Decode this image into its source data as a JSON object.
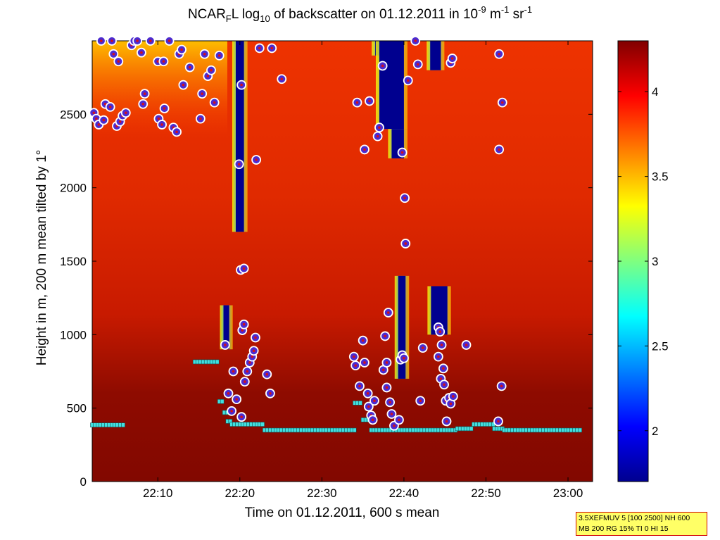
{
  "title": {
    "p1": "NCAR",
    "p1_sub": "F",
    "p2": "L log",
    "p2_sub": "10",
    "p3": " of backscatter on 01.12.2011 in 10",
    "sup1": "-9",
    "p4": " m",
    "sup2": "-1",
    "p5": " sr",
    "sup3": "-1"
  },
  "x_axis_label": "Time on 01.12.2011, 600 s mean",
  "y_axis_label": "Height in m, 200 m mean tilted by 1°",
  "info_box": {
    "line1": "3.5XEFMUV 5 [100 2500] NH 600",
    "line2": "MB 200 RG 15% TI 0 HI 15"
  },
  "colors": {
    "background": "#cc1a00",
    "lower_layer": "#8b0a00",
    "high": "#800000",
    "low": "#00008f",
    "marker_fill": "#4b2bd0",
    "marker_ring": "#ffffff",
    "marker_dot": "#d01020",
    "cyan_marker": "#40e0e0"
  },
  "chart_data": {
    "type": "heatmap",
    "x_unit": "time",
    "xlim": [
      "22:02",
      "23:03"
    ],
    "ylim": [
      0,
      3000
    ],
    "x_ticks": [
      "22:10",
      "22:20",
      "22:30",
      "22:40",
      "22:50",
      "23:00"
    ],
    "y_ticks": [
      0,
      500,
      1000,
      1500,
      2000,
      2500
    ],
    "colorbar": {
      "range": [
        1.7,
        4.3
      ],
      "ticks": [
        2,
        2.5,
        3,
        3.5,
        4
      ],
      "colormap": "jet"
    },
    "low_backscatter_regions": [
      {
        "t_start": "22:19.5",
        "t_end": "22:20.5",
        "z_min": 1700,
        "z_max": 3000
      },
      {
        "t_start": "22:18.0",
        "t_end": "22:18.7",
        "z_min": 900,
        "z_max": 1200
      },
      {
        "t_start": "22:36.5",
        "t_end": "22:38.0",
        "z_min": 2900,
        "z_max": 3000
      },
      {
        "t_start": "22:37.0",
        "t_end": "22:40.0",
        "z_min": 2400,
        "z_max": 3000
      },
      {
        "t_start": "22:38.5",
        "t_end": "22:40.0",
        "z_min": 2200,
        "z_max": 2400
      },
      {
        "t_start": "22:39.3",
        "t_end": "22:40.2",
        "z_min": 700,
        "z_max": 1400
      },
      {
        "t_start": "22:43.2",
        "t_end": "22:44.5",
        "z_min": 2800,
        "z_max": 3000
      },
      {
        "t_start": "22:43.3",
        "t_end": "22:45.3",
        "z_min": 1000,
        "z_max": 1330
      }
    ],
    "cloud_base_points": [
      {
        "t": "22:02.2",
        "z": 2510
      },
      {
        "t": "22:02.5",
        "z": 2470
      },
      {
        "t": "22:02.8",
        "z": 2430
      },
      {
        "t": "22:03.1",
        "z": 3000
      },
      {
        "t": "22:03.4",
        "z": 2460
      },
      {
        "t": "22:03.6",
        "z": 2570
      },
      {
        "t": "22:04.2",
        "z": 2550
      },
      {
        "t": "22:04.4",
        "z": 3000
      },
      {
        "t": "22:04.6",
        "z": 2910
      },
      {
        "t": "22:05.0",
        "z": 2420
      },
      {
        "t": "22:05.2",
        "z": 2860
      },
      {
        "t": "22:05.4",
        "z": 2450
      },
      {
        "t": "22:05.7",
        "z": 2490
      },
      {
        "t": "22:06.1",
        "z": 2510
      },
      {
        "t": "22:06.8",
        "z": 2970
      },
      {
        "t": "22:07.1",
        "z": 3000
      },
      {
        "t": "22:07.5",
        "z": 3000
      },
      {
        "t": "22:08.0",
        "z": 2920
      },
      {
        "t": "22:08.2",
        "z": 2570
      },
      {
        "t": "22:08.4",
        "z": 2640
      },
      {
        "t": "22:09.1",
        "z": 3000
      },
      {
        "t": "22:10.0",
        "z": 2860
      },
      {
        "t": "22:10.1",
        "z": 2470
      },
      {
        "t": "22:10.5",
        "z": 2430
      },
      {
        "t": "22:10.7",
        "z": 2860
      },
      {
        "t": "22:10.8",
        "z": 2540
      },
      {
        "t": "22:11.4",
        "z": 3000
      },
      {
        "t": "22:11.9",
        "z": 2410
      },
      {
        "t": "22:12.3",
        "z": 2380
      },
      {
        "t": "22:12.6",
        "z": 2910
      },
      {
        "t": "22:12.9",
        "z": 2940
      },
      {
        "t": "22:13.1",
        "z": 2700
      },
      {
        "t": "22:13.9",
        "z": 2820
      },
      {
        "t": "22:15.2",
        "z": 2470
      },
      {
        "t": "22:15.4",
        "z": 2640
      },
      {
        "t": "22:15.7",
        "z": 2910
      },
      {
        "t": "22:16.1",
        "z": 2760
      },
      {
        "t": "22:16.5",
        "z": 2800
      },
      {
        "t": "22:16.9",
        "z": 2580
      },
      {
        "t": "22:17.5",
        "z": 2900
      },
      {
        "t": "22:19.9",
        "z": 2160
      },
      {
        "t": "22:20.2",
        "z": 2700
      },
      {
        "t": "22:22.0",
        "z": 2190
      },
      {
        "t": "22:22.4",
        "z": 2950
      },
      {
        "t": "22:23.9",
        "z": 2950
      },
      {
        "t": "22:25.1",
        "z": 2740
      },
      {
        "t": "22:34.3",
        "z": 2580
      },
      {
        "t": "22:35.2",
        "z": 2260
      },
      {
        "t": "22:35.8",
        "z": 2590
      },
      {
        "t": "22:36.8",
        "z": 2350
      },
      {
        "t": "22:37.0",
        "z": 2410
      },
      {
        "t": "22:37.4",
        "z": 2830
      },
      {
        "t": "22:39.8",
        "z": 2240
      },
      {
        "t": "22:40.1",
        "z": 1930
      },
      {
        "t": "22:40.2",
        "z": 1620
      },
      {
        "t": "22:40.5",
        "z": 2730
      },
      {
        "t": "22:41.4",
        "z": 3000
      },
      {
        "t": "22:41.7",
        "z": 2840
      },
      {
        "t": "22:45.7",
        "z": 2850
      },
      {
        "t": "22:45.9",
        "z": 2880
      },
      {
        "t": "22:51.6",
        "z": 2910
      },
      {
        "t": "22:51.6",
        "z": 2260
      },
      {
        "t": "22:52.0",
        "z": 2580
      },
      {
        "t": "22:20.1",
        "z": 1440
      },
      {
        "t": "22:20.5",
        "z": 1450
      },
      {
        "t": "22:18.2",
        "z": 930
      },
      {
        "t": "22:19.2",
        "z": 750
      },
      {
        "t": "22:18.6",
        "z": 600
      },
      {
        "t": "22:19.0",
        "z": 480
      },
      {
        "t": "22:19.6",
        "z": 560
      },
      {
        "t": "22:20.2",
        "z": 440
      },
      {
        "t": "22:20.3",
        "z": 1030
      },
      {
        "t": "22:20.5",
        "z": 1070
      },
      {
        "t": "22:20.6",
        "z": 680
      },
      {
        "t": "22:20.9",
        "z": 750
      },
      {
        "t": "22:21.2",
        "z": 810
      },
      {
        "t": "22:21.5",
        "z": 850
      },
      {
        "t": "22:21.7",
        "z": 890
      },
      {
        "t": "22:21.9",
        "z": 980
      },
      {
        "t": "22:23.3",
        "z": 730
      },
      {
        "t": "22:23.7",
        "z": 600
      },
      {
        "t": "22:33.9",
        "z": 850
      },
      {
        "t": "22:34.1",
        "z": 790
      },
      {
        "t": "22:34.6",
        "z": 650
      },
      {
        "t": "22:35.0",
        "z": 960
      },
      {
        "t": "22:35.2",
        "z": 810
      },
      {
        "t": "22:35.6",
        "z": 600
      },
      {
        "t": "22:35.7",
        "z": 510
      },
      {
        "t": "22:36.0",
        "z": 450
      },
      {
        "t": "22:36.2",
        "z": 420
      },
      {
        "t": "22:36.4",
        "z": 550
      },
      {
        "t": "22:37.5",
        "z": 760
      },
      {
        "t": "22:37.7",
        "z": 990
      },
      {
        "t": "22:37.9",
        "z": 810
      },
      {
        "t": "22:37.9",
        "z": 640
      },
      {
        "t": "22:38.1",
        "z": 1150
      },
      {
        "t": "22:38.3",
        "z": 540
      },
      {
        "t": "22:38.5",
        "z": 460
      },
      {
        "t": "22:38.8",
        "z": 380
      },
      {
        "t": "22:39.4",
        "z": 420
      },
      {
        "t": "22:39.6",
        "z": 830
      },
      {
        "t": "22:39.8",
        "z": 860
      },
      {
        "t": "22:40.0",
        "z": 840
      },
      {
        "t": "22:42.3",
        "z": 910
      },
      {
        "t": "22:42.0",
        "z": 550
      },
      {
        "t": "22:44.2",
        "z": 1050
      },
      {
        "t": "22:44.4",
        "z": 1020
      },
      {
        "t": "22:44.6",
        "z": 930
      },
      {
        "t": "22:44.2",
        "z": 850
      },
      {
        "t": "22:44.5",
        "z": 700
      },
      {
        "t": "22:44.8",
        "z": 770
      },
      {
        "t": "22:44.9",
        "z": 660
      },
      {
        "t": "22:45.1",
        "z": 550
      },
      {
        "t": "22:45.2",
        "z": 410
      },
      {
        "t": "22:45.5",
        "z": 570
      },
      {
        "t": "22:45.7",
        "z": 530
      },
      {
        "t": "22:46.0",
        "z": 580
      },
      {
        "t": "22:47.6",
        "z": 930
      },
      {
        "t": "22:51.5",
        "z": 410
      },
      {
        "t": "22:51.9",
        "z": 650
      }
    ],
    "boundary_layer_height": [
      {
        "t_start": "22:02.0",
        "t_end": "22:06.0",
        "z": 385
      },
      {
        "t_start": "22:14.5",
        "t_end": "22:17.3",
        "z": 815
      },
      {
        "t_start": "22:17.5",
        "t_end": "22:18.1",
        "z": 545
      },
      {
        "t_start": "22:18.1",
        "t_end": "22:18.5",
        "z": 470
      },
      {
        "t_start": "22:18.5",
        "t_end": "22:19.0",
        "z": 410
      },
      {
        "t_start": "22:19.0",
        "t_end": "22:23.0",
        "z": 390
      },
      {
        "t_start": "22:23.0",
        "t_end": "22:34.0",
        "z": 350
      },
      {
        "t_start": "22:34.0",
        "t_end": "22:35.0",
        "z": 535
      },
      {
        "t_start": "22:35.0",
        "t_end": "22:36.0",
        "z": 420
      },
      {
        "t_start": "22:36.0",
        "t_end": "22:46.5",
        "z": 350
      },
      {
        "t_start": "22:46.5",
        "t_end": "22:48.5",
        "z": 360
      },
      {
        "t_start": "22:48.5",
        "t_end": "22:51.0",
        "z": 390
      },
      {
        "t_start": "22:51.0",
        "t_end": "22:52.2",
        "z": 360
      },
      {
        "t_start": "22:52.2",
        "t_end": "23:01.5",
        "z": 350
      }
    ]
  }
}
